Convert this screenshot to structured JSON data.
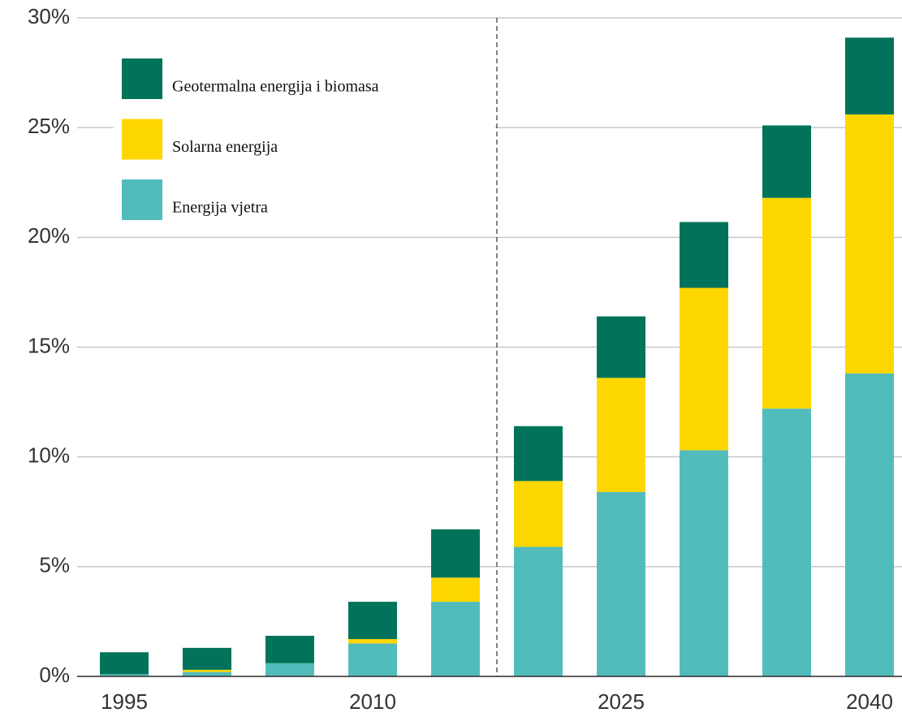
{
  "chart_data": {
    "type": "stacked_bar",
    "categories": [
      "1995",
      null,
      null,
      "2010",
      null,
      null,
      "2025",
      null,
      null,
      "2040"
    ],
    "series": [
      {
        "name": "Energija vjetra",
        "color": "#52bcbd",
        "values": [
          0.1,
          0.2,
          0.6,
          1.5,
          3.4,
          5.9,
          8.4,
          10.3,
          12.2,
          13.8
        ]
      },
      {
        "name": "Solarna energija",
        "color": "#ffd700",
        "values": [
          0,
          0.1,
          0,
          0.2,
          1.1,
          3.0,
          5.2,
          7.4,
          9.6,
          11.8
        ]
      },
      {
        "name": "Geotermalna energija i biomasa",
        "color": "#00735a",
        "values": [
          1.0,
          1.0,
          1.25,
          1.7,
          2.2,
          2.5,
          2.8,
          3.0,
          3.3,
          3.5
        ]
      }
    ],
    "ylim": [
      0,
      30
    ],
    "yticks": [
      {
        "value": 0,
        "label": "0%"
      },
      {
        "value": 5,
        "label": "5%"
      },
      {
        "value": 10,
        "label": "10%"
      },
      {
        "value": 15,
        "label": "15%"
      },
      {
        "value": 20,
        "label": "20%"
      },
      {
        "value": 25,
        "label": "25%"
      },
      {
        "value": 30,
        "label": "30%"
      }
    ],
    "grid": true,
    "legend": "upper left"
  }
}
